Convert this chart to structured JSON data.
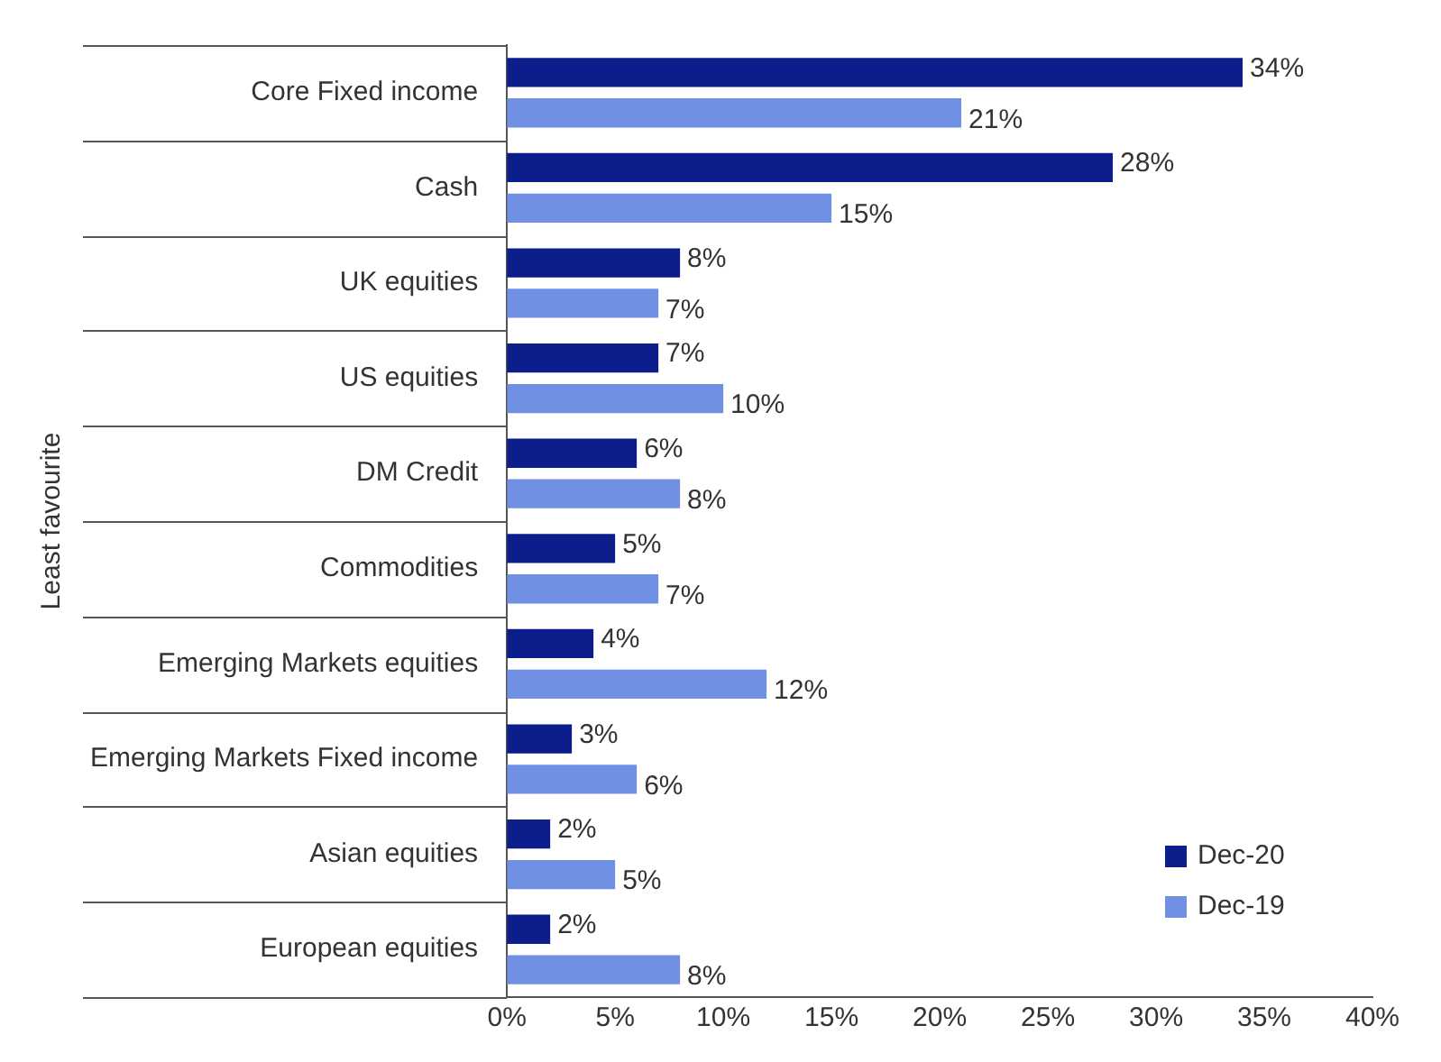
{
  "chart_data": {
    "type": "bar",
    "orientation": "horizontal",
    "ylabel": "Least favourite",
    "categories": [
      "Core Fixed income",
      "Cash",
      "UK equities",
      "US equities",
      "DM Credit",
      "Commodities",
      "Emerging Markets equities",
      "Emerging Markets Fixed income",
      "Asian equities",
      "European equities"
    ],
    "series": [
      {
        "name": "Dec-20",
        "color": "#0b1e8c",
        "values": [
          34,
          28,
          8,
          7,
          6,
          5,
          4,
          3,
          2,
          2
        ],
        "value_labels": [
          "34%",
          "28%",
          "8%",
          "7%",
          "6%",
          "5%",
          "4%",
          "3%",
          "2%",
          "2%"
        ]
      },
      {
        "name": "Dec-19",
        "color": "#6f90e3",
        "values": [
          21,
          15,
          7,
          10,
          8,
          7,
          12,
          6,
          5,
          8
        ],
        "value_labels": [
          "21%",
          "15%",
          "7%",
          "10%",
          "8%",
          "7%",
          "12%",
          "6%",
          "5%",
          "8%"
        ]
      }
    ],
    "xlim": [
      0,
      40
    ],
    "xticks": [
      {
        "value": 0,
        "label": "0%"
      },
      {
        "value": 5,
        "label": "5%"
      },
      {
        "value": 10,
        "label": "10%"
      },
      {
        "value": 15,
        "label": "15%"
      },
      {
        "value": 20,
        "label": "20%"
      },
      {
        "value": 25,
        "label": "25%"
      },
      {
        "value": 30,
        "label": "30%"
      },
      {
        "value": 35,
        "label": "35%"
      },
      {
        "value": 40,
        "label": "40%"
      }
    ],
    "legend": "bottom right"
  }
}
